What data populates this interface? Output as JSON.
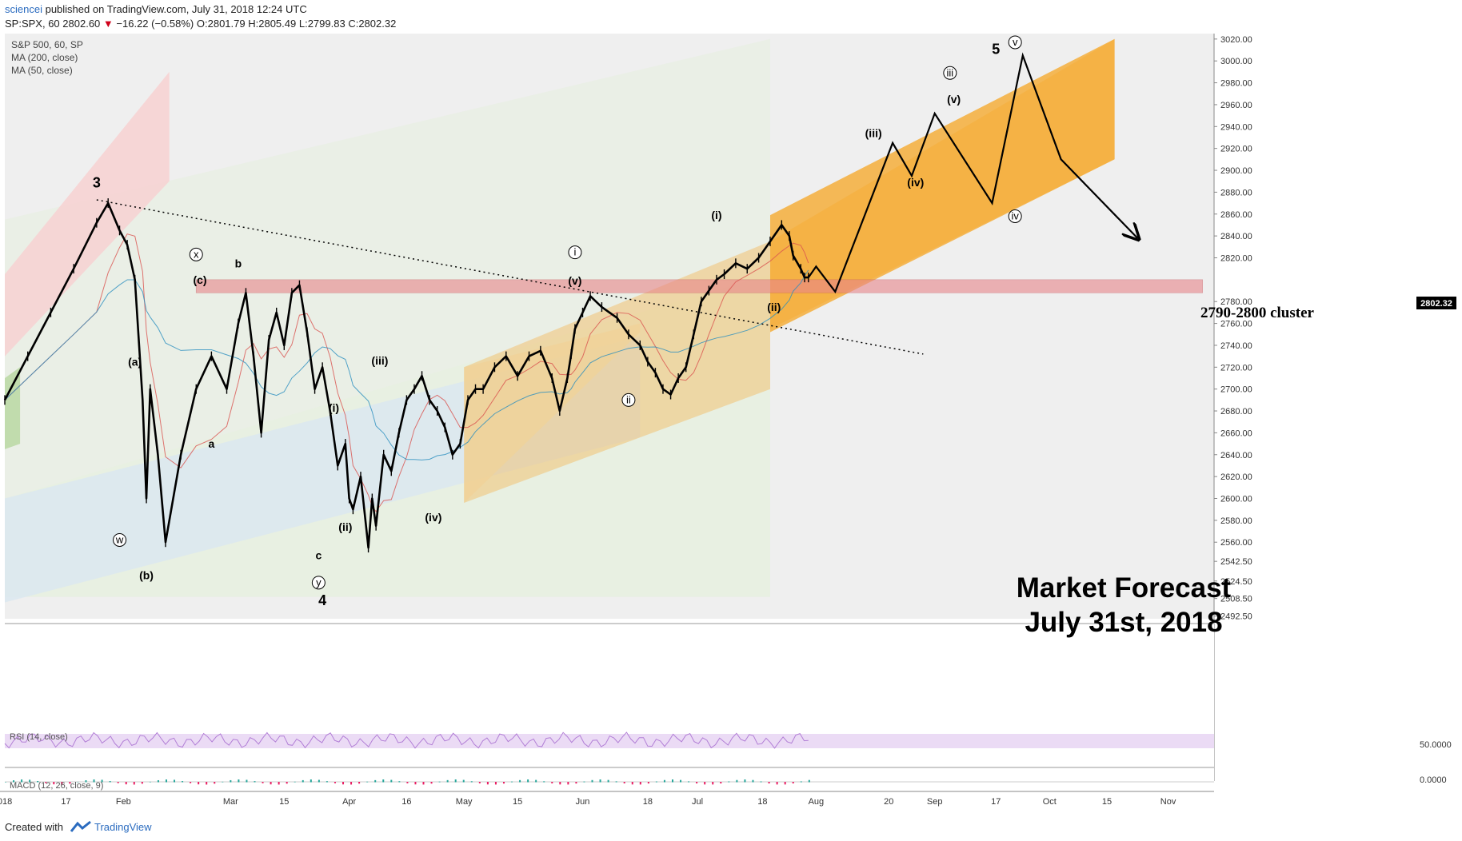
{
  "header": {
    "publisher": "sciencei",
    "published_text": "published on TradingView.com, July 31, 2018 12:24 UTC",
    "symbol": "SP:SPX, 60",
    "last": "2802.60",
    "change": "−16.22 (−0.58%)",
    "o": "O:2801.79",
    "h": "H:2805.49",
    "l": "L:2799.83",
    "c": "C:2802.32"
  },
  "legend": [
    "S&P 500, 60, SP",
    "MA (200, close)",
    "MA (50, close)"
  ],
  "price_label": "2802.32",
  "annotation": {
    "cluster": "2790-2800 cluster",
    "forecast_line1": "Market Forecast",
    "forecast_line2": "July 31st, 2018"
  },
  "rsi": {
    "label": "RSI (14, close)",
    "value": "50.0000"
  },
  "macd": {
    "label": "MACD (12, 26, close, 9)",
    "value": "0.0000"
  },
  "footer": {
    "created": "Created with",
    "brand": "TradingView"
  },
  "colors": {
    "up_arrow": "#d0021b",
    "ma50": "#d9534f",
    "ma200": "#2b8fbf",
    "forecast": "#f5a623",
    "cluster": "#e8858a",
    "rsi": "#b27fd6"
  },
  "chart_data": {
    "type": "line",
    "title": "S&P 500, 60, SP",
    "xlabel": "",
    "ylabel": "",
    "ylim": [
      2490,
      3025
    ],
    "y_ticks": [
      3020.0,
      3000.0,
      2980.0,
      2960.0,
      2940.0,
      2920.0,
      2900.0,
      2880.0,
      2860.0,
      2840.0,
      2820.0,
      2780.0,
      2760.0,
      2740.0,
      2720.0,
      2700.0,
      2680.0,
      2660.0,
      2640.0,
      2620.0,
      2600.0,
      2580.0,
      2560.0,
      2542.5,
      2524.5,
      2508.5,
      2492.5
    ],
    "x_ticks": [
      {
        "label": "018",
        "x": 0
      },
      {
        "label": "17",
        "x": 16
      },
      {
        "label": "Feb",
        "x": 31
      },
      {
        "label": "Mar",
        "x": 59
      },
      {
        "label": "15",
        "x": 73
      },
      {
        "label": "Apr",
        "x": 90
      },
      {
        "label": "16",
        "x": 105
      },
      {
        "label": "May",
        "x": 120
      },
      {
        "label": "15",
        "x": 134
      },
      {
        "label": "Jun",
        "x": 151
      },
      {
        "label": "18",
        "x": 168
      },
      {
        "label": "Jul",
        "x": 181
      },
      {
        "label": "18",
        "x": 198
      },
      {
        "label": "Aug",
        "x": 212
      },
      {
        "label": "20",
        "x": 231
      },
      {
        "label": "Sep",
        "x": 243
      },
      {
        "label": "17",
        "x": 259
      },
      {
        "label": "Oct",
        "x": 273
      },
      {
        "label": "15",
        "x": 288
      },
      {
        "label": "Nov",
        "x": 304
      }
    ],
    "series": [
      {
        "name": "S&P 500, 60, SP",
        "x": [
          0,
          6,
          12,
          18,
          24,
          27,
          30,
          32,
          34,
          36,
          37,
          38,
          40,
          42,
          46,
          50,
          54,
          58,
          61,
          63,
          65,
          67,
          69,
          71,
          73,
          75,
          77,
          79,
          81,
          83,
          85,
          87,
          89,
          90,
          91,
          93,
          95,
          96,
          97,
          99,
          101,
          103,
          105,
          107,
          109,
          111,
          113,
          115,
          117,
          119,
          121,
          123,
          125,
          128,
          131,
          134,
          137,
          140,
          143,
          145,
          147,
          148,
          149,
          151,
          153,
          156,
          160,
          163,
          166,
          168,
          170,
          172,
          174,
          176,
          178,
          180,
          182,
          184,
          186,
          188,
          191,
          194,
          197,
          200,
          203,
          205,
          206,
          208,
          209,
          210
        ],
        "values": [
          2690,
          2730,
          2770,
          2810,
          2852,
          2870,
          2845,
          2832,
          2800,
          2690,
          2600,
          2700,
          2640,
          2560,
          2640,
          2700,
          2730,
          2700,
          2760,
          2788,
          2730,
          2660,
          2745,
          2770,
          2740,
          2788,
          2795,
          2752,
          2700,
          2720,
          2680,
          2630,
          2650,
          2600,
          2590,
          2620,
          2555,
          2600,
          2575,
          2640,
          2625,
          2660,
          2690,
          2700,
          2712,
          2690,
          2680,
          2665,
          2640,
          2650,
          2690,
          2700,
          2700,
          2720,
          2730,
          2712,
          2730,
          2735,
          2710,
          2680,
          2710,
          2732,
          2755,
          2770,
          2785,
          2775,
          2765,
          2750,
          2740,
          2725,
          2715,
          2700,
          2695,
          2710,
          2720,
          2750,
          2780,
          2790,
          2800,
          2805,
          2815,
          2810,
          2820,
          2835,
          2850,
          2840,
          2822,
          2810,
          2802,
          2802
        ]
      },
      {
        "name": "Forecast path",
        "x": [
          210,
          212,
          217,
          232,
          237,
          243,
          258,
          266,
          276,
          296
        ],
        "values": [
          2802,
          2812,
          2789,
          2925,
          2895,
          2952,
          2870,
          3005,
          2910,
          2838
        ]
      }
    ],
    "wave_labels": [
      "3",
      "4",
      "5",
      "(a)",
      "(b)",
      "(c)",
      "a",
      "b",
      "c",
      "(i)",
      "(ii)",
      "(iii)",
      "(iv)",
      "(v)",
      "(i)",
      "(ii)",
      "(iii)",
      "(iv)",
      "(v)",
      "w",
      "x",
      "y",
      "i",
      "ii",
      "iii",
      "iv",
      "v"
    ],
    "grid": false,
    "legend": "top-left"
  }
}
